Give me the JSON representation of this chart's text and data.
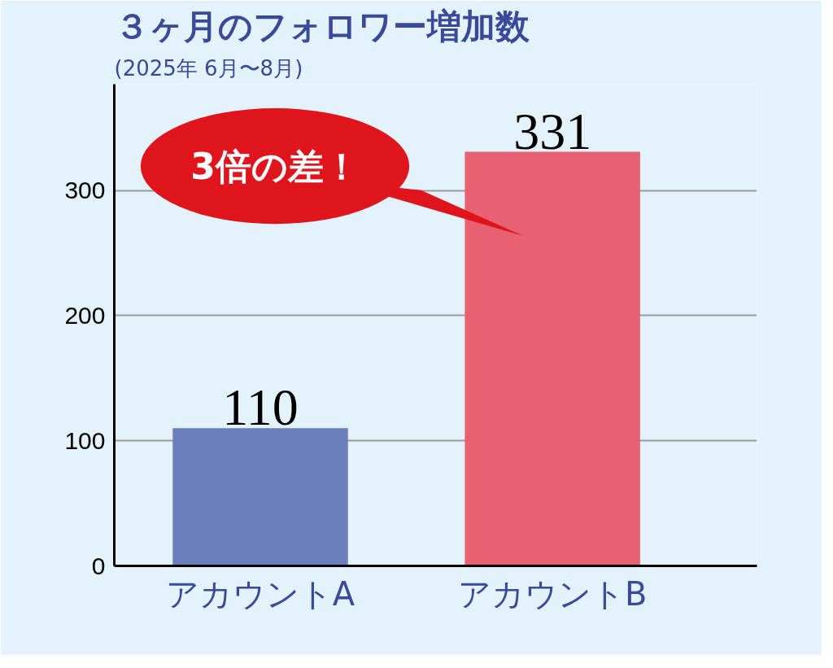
{
  "chart_data": {
    "type": "bar",
    "title": "３ヶ月のフォロワー増加数",
    "subtitle": "(2025年 6月〜8月)",
    "categories": [
      "アカウントA",
      "アカウントB"
    ],
    "values": [
      110,
      331
    ],
    "colors": [
      "#6a7fbc",
      "#e86173"
    ],
    "ylim": [
      0,
      385
    ],
    "yticks": [
      0,
      100,
      200,
      300
    ],
    "grid": "y",
    "data_labels": true,
    "annotations": [
      "3倍の差！"
    ]
  }
}
